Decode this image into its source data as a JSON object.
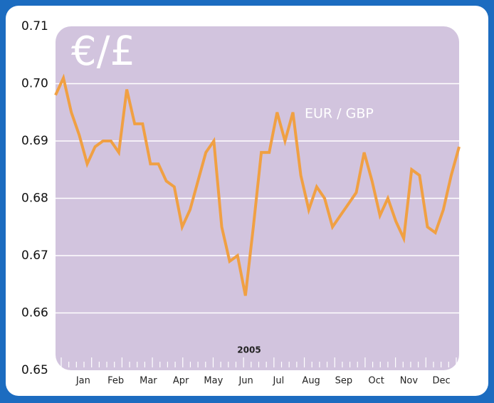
{
  "chart_data": {
    "type": "line",
    "title": "€/£",
    "x_label": "2005",
    "months": [
      "Jan",
      "Feb",
      "Mar",
      "Apr",
      "May",
      "Jun",
      "Jul",
      "Aug",
      "Sep",
      "Oct",
      "Nov",
      "Dec"
    ],
    "series": [
      {
        "name": "EUR / GBP",
        "color": "#f0a043",
        "values": [
          0.698,
          0.701,
          0.695,
          0.691,
          0.686,
          0.689,
          0.69,
          0.69,
          0.688,
          0.699,
          0.693,
          0.693,
          0.686,
          0.686,
          0.683,
          0.682,
          0.675,
          0.678,
          0.683,
          0.688,
          0.69,
          0.675,
          0.669,
          0.67,
          0.663,
          0.675,
          0.688,
          0.688,
          0.695,
          0.69,
          0.695,
          0.684,
          0.678,
          0.682,
          0.68,
          0.675,
          0.677,
          0.679,
          0.681,
          0.688,
          0.683,
          0.677,
          0.68,
          0.676,
          0.673,
          0.685,
          0.684,
          0.675,
          0.674,
          0.678,
          0.684,
          0.689
        ]
      }
    ],
    "ylim": [
      0.65,
      0.71
    ],
    "yticks": [
      0.65,
      0.66,
      0.67,
      0.68,
      0.69,
      {
        "value": 0.7,
        "label": "0.70"
      },
      0.71
    ],
    "grid": true
  }
}
